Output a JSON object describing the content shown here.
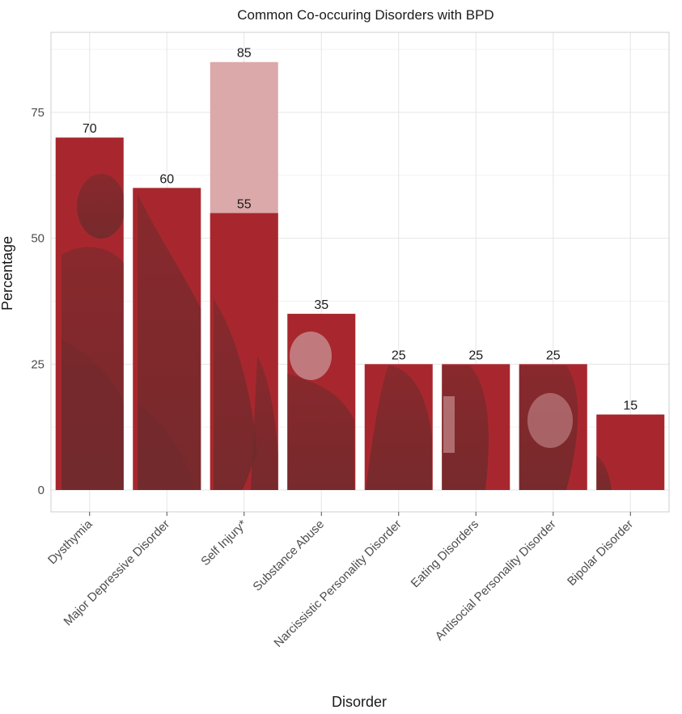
{
  "chart_data": {
    "type": "bar",
    "title": "Common Co-occuring Disorders with BPD",
    "xlabel": "Disorder",
    "ylabel": "Percentage",
    "ylim": [
      0,
      89
    ],
    "yticks": [
      0,
      25,
      50,
      75
    ],
    "grid": true,
    "categories": [
      "Dysthymia",
      "Major Depressive Disorder",
      "Self Injury*",
      "Substance Abuse",
      "Narcissistic Personality Disorder",
      "Eating Disorders",
      "Antisocial Personality Disorder",
      "Bipolar Disorder"
    ],
    "series": [
      {
        "values": [
          70,
          60,
          55,
          35,
          25,
          25,
          25,
          15
        ],
        "color": "#a8272e"
      },
      {
        "values": [
          null,
          null,
          85,
          null,
          null,
          null,
          null,
          null
        ],
        "color": "#dba9aa"
      }
    ],
    "data_labels": [
      {
        "category": "Dysthymia",
        "text": "70",
        "value": 70
      },
      {
        "category": "Major Depressive Disorder",
        "text": "60",
        "value": 60
      },
      {
        "category": "Self Injury*",
        "text": "85",
        "value": 85
      },
      {
        "category": "Self Injury*",
        "text": "55",
        "value": 55
      },
      {
        "category": "Substance Abuse",
        "text": "35",
        "value": 35
      },
      {
        "category": "Narcissistic Personality Disorder",
        "text": "25",
        "value": 25
      },
      {
        "category": "Eating Disorders",
        "text": "25",
        "value": 25
      },
      {
        "category": "Antisocial Personality Disorder",
        "text": "25",
        "value": 25
      },
      {
        "category": "Bipolar Disorder",
        "text": "15",
        "value": 15
      }
    ],
    "colors": {
      "bar": "#a8272e",
      "bar_overlay_light": "#dba9aa",
      "photo_tint": "#6e2a2c",
      "grid": "#e5e5e5",
      "border": "#cfcfcf"
    }
  }
}
